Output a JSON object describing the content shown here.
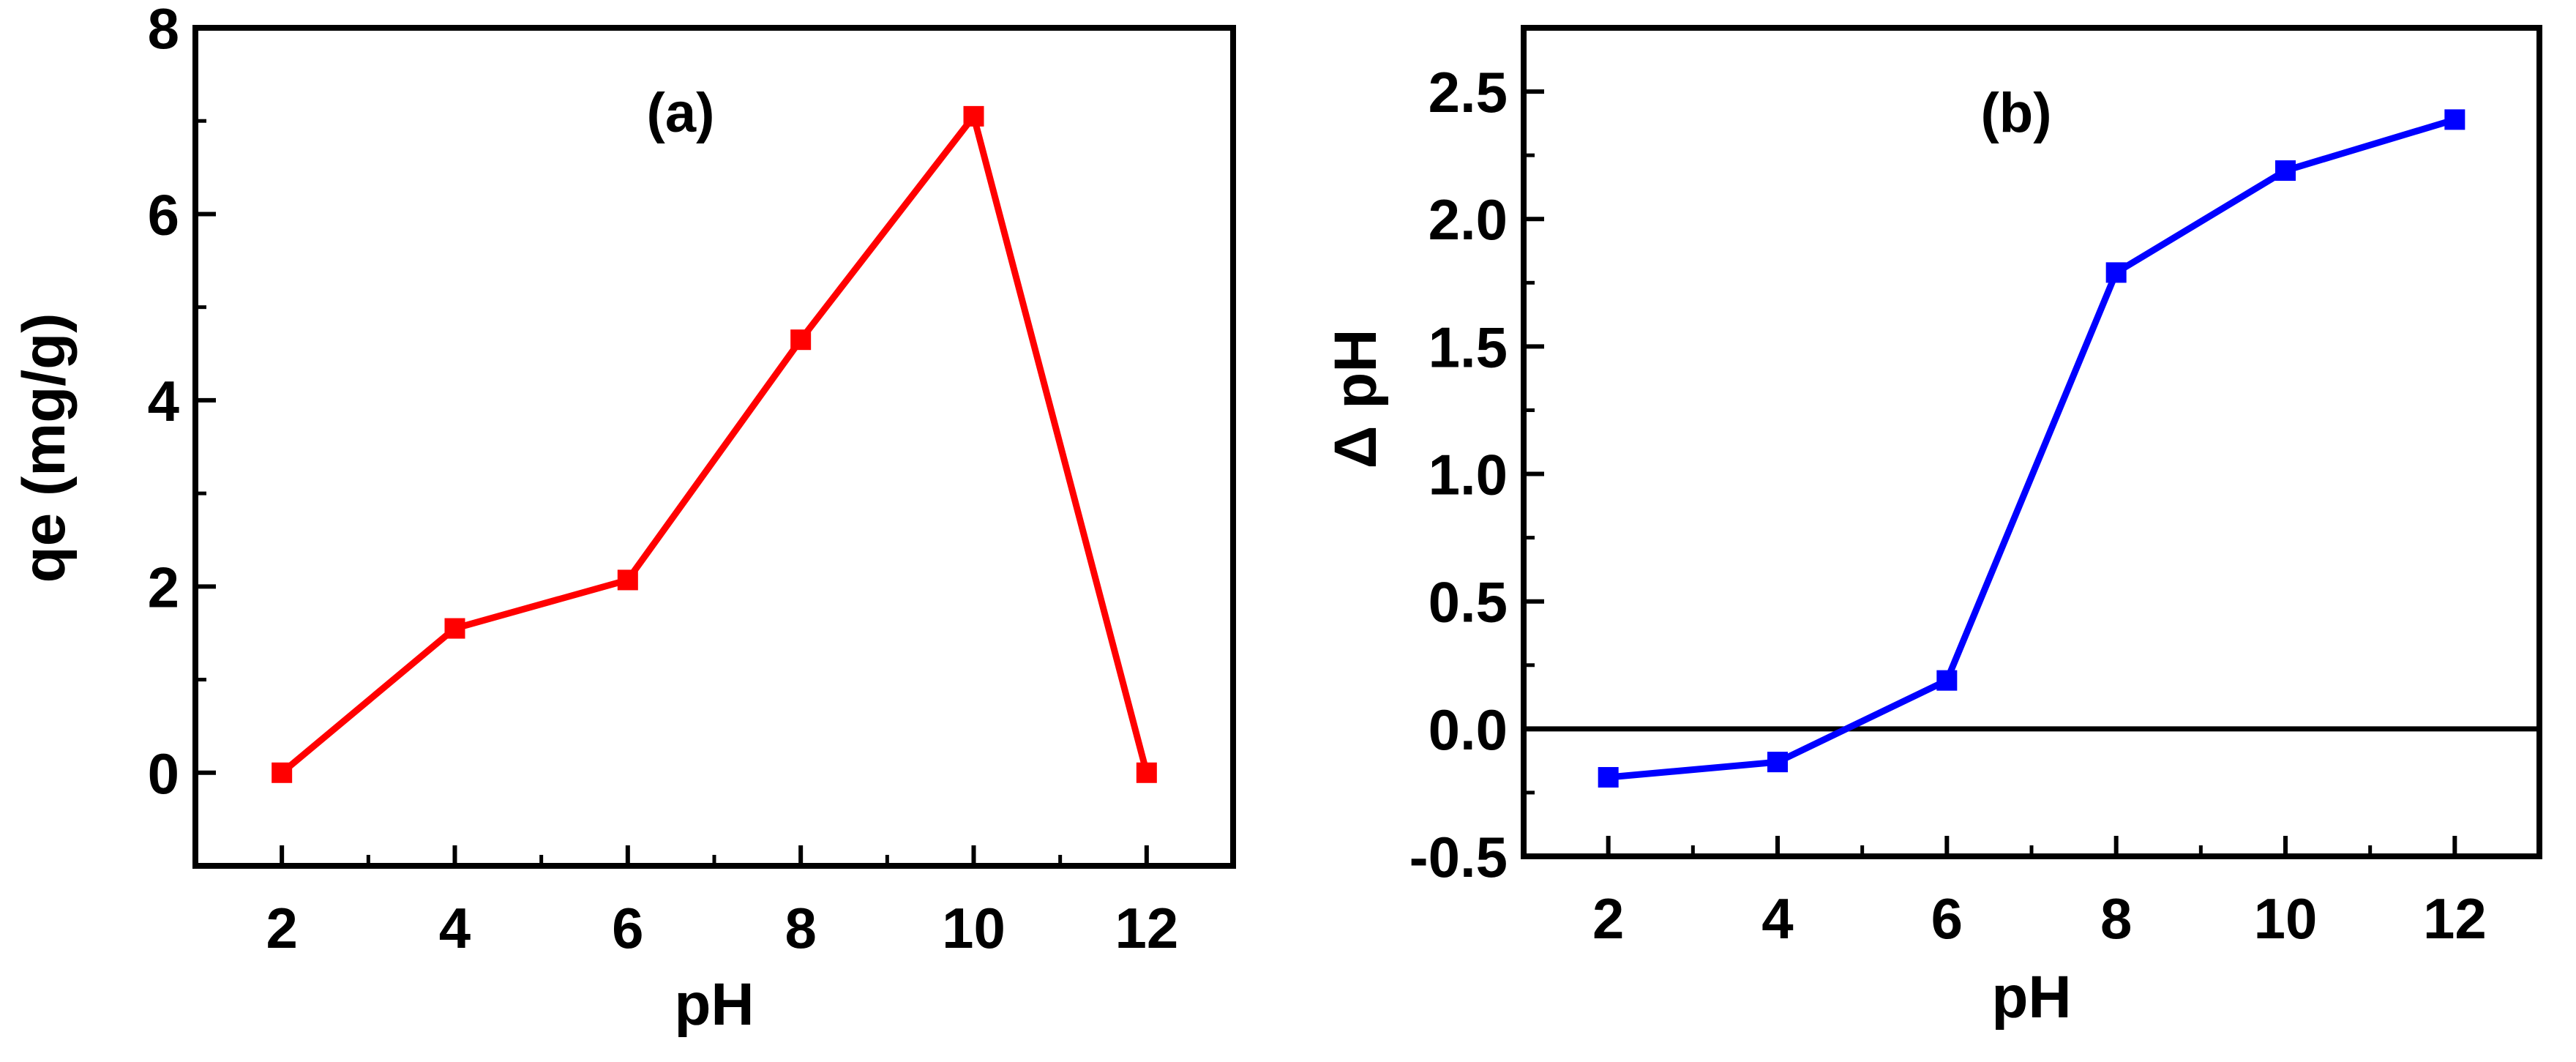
{
  "chart_data": [
    {
      "type": "line",
      "panel_label": "(a)",
      "xlabel": "pH",
      "ylabel": "qe (mg/g)",
      "x": [
        2,
        4,
        6,
        8,
        10,
        12
      ],
      "xlim": [
        1,
        13
      ],
      "ylim": [
        -1,
        8
      ],
      "xticks": [
        2,
        4,
        6,
        8,
        10,
        12
      ],
      "xtick_labels": [
        "2",
        "4",
        "6",
        "8",
        "10",
        "12"
      ],
      "yticks": [
        0,
        2,
        4,
        6,
        8
      ],
      "ytick_labels": [
        "0",
        "2",
        "4",
        "6",
        "8"
      ],
      "series": [
        {
          "values": [
            0,
            1.55,
            2.07,
            4.65,
            7.05,
            0
          ],
          "color": "#ff0000",
          "marker": "square"
        }
      ],
      "grid": false
    },
    {
      "type": "line",
      "panel_label": "(b)",
      "xlabel": "pH",
      "ylabel": "Δ pH",
      "x": [
        2,
        4,
        6,
        8,
        10,
        12
      ],
      "xlim": [
        1,
        13
      ],
      "ylim": [
        -0.5,
        2.75
      ],
      "xticks": [
        2,
        4,
        6,
        8,
        10,
        12
      ],
      "xtick_labels": [
        "2",
        "4",
        "6",
        "8",
        "10",
        "12"
      ],
      "yticks": [
        -0.5,
        0,
        0.5,
        1,
        1.5,
        2,
        2.5
      ],
      "ytick_labels": [
        "-0.5",
        "0.0",
        "0.5",
        "1.0",
        "1.5",
        "2.0",
        "2.5"
      ],
      "reference_line": 0,
      "series": [
        {
          "values": [
            -0.19,
            -0.13,
            0.19,
            1.79,
            2.19,
            2.39
          ],
          "color": "#0000ff",
          "marker": "square"
        }
      ],
      "grid": false
    }
  ]
}
